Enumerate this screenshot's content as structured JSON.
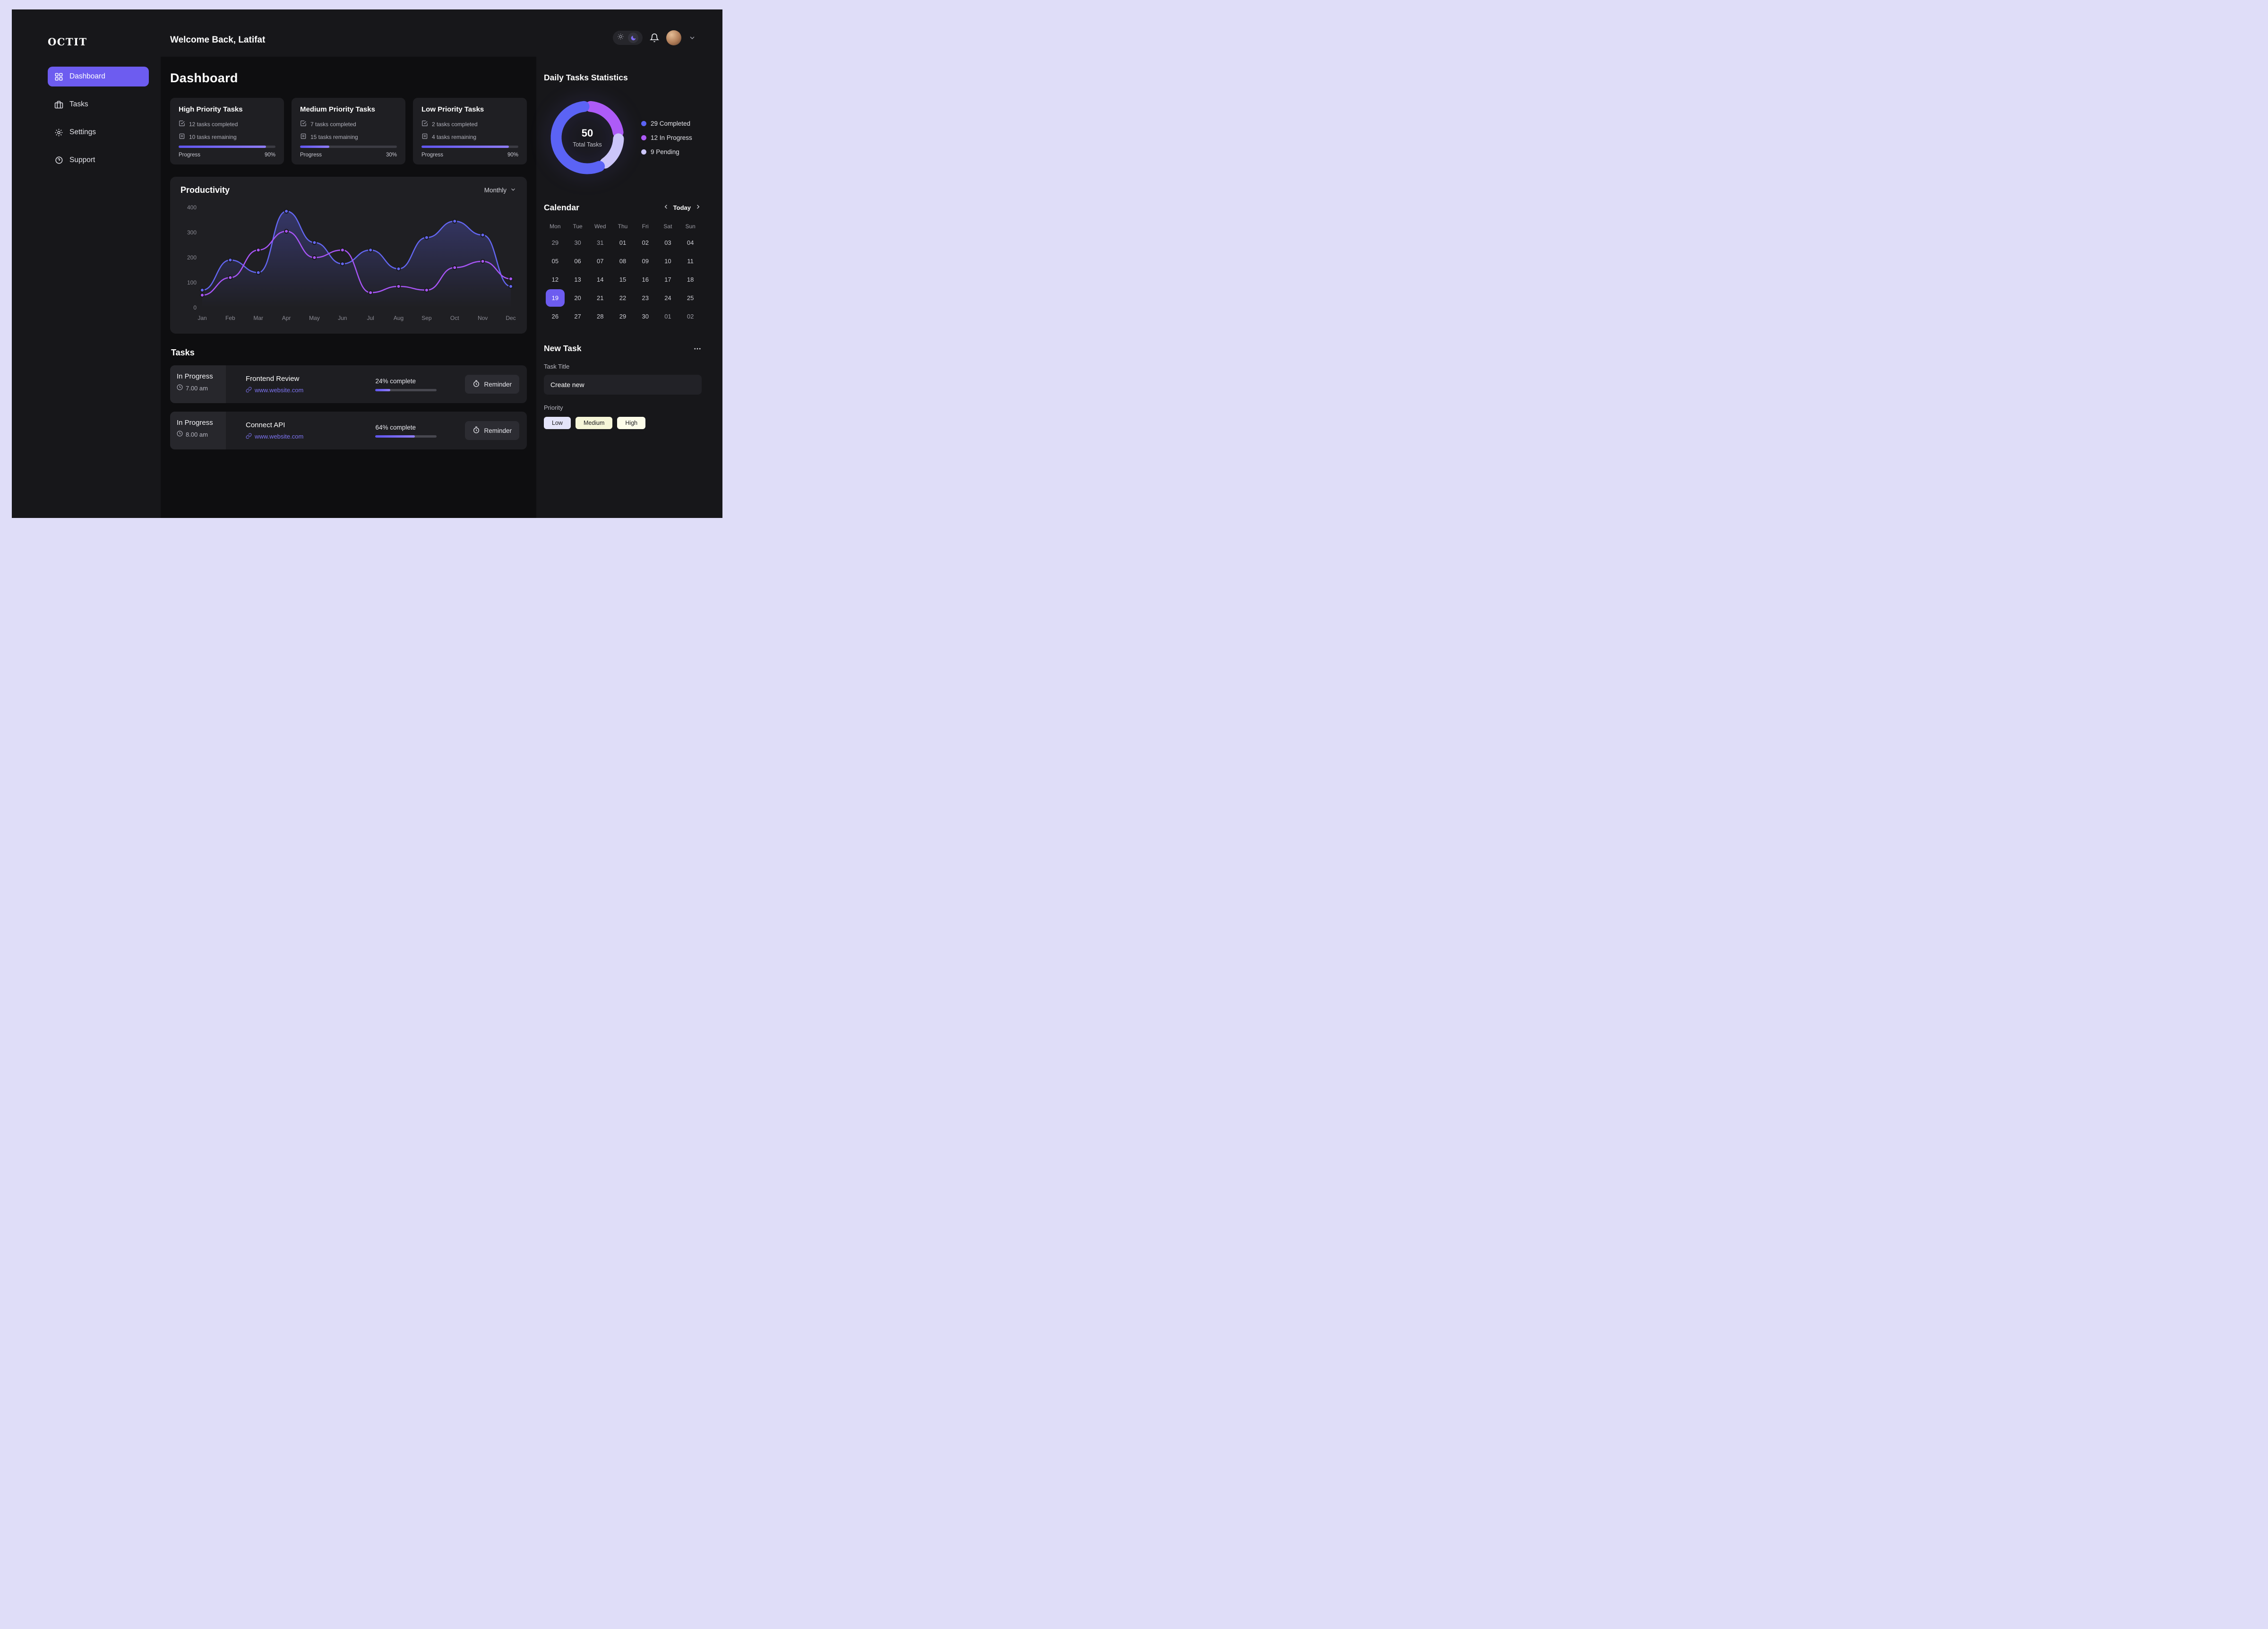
{
  "app": {
    "logo": "OCTIT",
    "welcome": "Welcome Back, Latifat"
  },
  "sidebar": {
    "items": [
      {
        "label": "Dashboard"
      },
      {
        "label": "Tasks"
      },
      {
        "label": "Settings"
      },
      {
        "label": "Support"
      }
    ]
  },
  "page": {
    "title": "Dashboard"
  },
  "priority_cards": [
    {
      "title": "High Priority Tasks",
      "completed": "12 tasks completed",
      "remaining": "10 tasks remaining",
      "progress_label": "Progress",
      "percent": 90,
      "percent_label": "90%"
    },
    {
      "title": "Medium Priority Tasks",
      "completed": "7 tasks completed",
      "remaining": "15 tasks remaining",
      "progress_label": "Progress",
      "percent": 30,
      "percent_label": "30%"
    },
    {
      "title": "Low Priority Tasks",
      "completed": "2 tasks completed",
      "remaining": "4 tasks remaining",
      "progress_label": "Progress",
      "percent": 90,
      "percent_label": "90%"
    }
  ],
  "productivity": {
    "title": "Productivity",
    "range_label": "Monthly"
  },
  "chart_data": {
    "type": "line",
    "title": "Productivity",
    "x": [
      "Jan",
      "Feb",
      "Mar",
      "Apr",
      "May",
      "Jun",
      "Jul",
      "Aug",
      "Sep",
      "Oct",
      "Nov",
      "Dec"
    ],
    "ylim": [
      0,
      400
    ],
    "yticks": [
      0,
      100,
      200,
      300,
      400
    ],
    "grid": false,
    "legend_position": "none",
    "series": [
      {
        "name": "primary",
        "color": "#6366f1",
        "area": true,
        "values": [
          70,
          190,
          140,
          385,
          260,
          175,
          230,
          155,
          280,
          345,
          290,
          85
        ]
      },
      {
        "name": "secondary",
        "color": "#a855f7",
        "area": false,
        "values": [
          50,
          120,
          230,
          305,
          200,
          230,
          60,
          85,
          70,
          160,
          185,
          115
        ]
      }
    ]
  },
  "tasks_section": {
    "title": "Tasks",
    "rows": [
      {
        "status": "In Progress",
        "time": "7.00 am",
        "title": "Frontend Review",
        "link": "www.website.com",
        "complete_label": "24% complete",
        "percent": 24,
        "reminder": "Reminder"
      },
      {
        "status": "In Progress",
        "time": "8.00 am",
        "title": "Connect API",
        "link": "www.website.com",
        "complete_label": "64% complete",
        "percent": 64,
        "reminder": "Reminder"
      }
    ]
  },
  "stats": {
    "title": "Daily Tasks Statistics",
    "total": "50",
    "total_label": "Total Tasks",
    "legend": [
      {
        "label": "29 Completed",
        "value": 29,
        "color": "#5b63f5"
      },
      {
        "label": "12 In Progress",
        "value": 12,
        "color": "#ad5bf7"
      },
      {
        "label": "9 Pending",
        "value": 9,
        "color": "#cbc5f9"
      }
    ]
  },
  "calendar": {
    "title": "Calendar",
    "today_label": "Today",
    "day_headers": [
      "Mon",
      "Tue",
      "Wed",
      "Thu",
      "Fri",
      "Sat",
      "Sun"
    ],
    "weeks": [
      [
        "29",
        "30",
        "31",
        "01",
        "02",
        "03",
        "04"
      ],
      [
        "05",
        "06",
        "07",
        "08",
        "09",
        "10",
        "11"
      ],
      [
        "12",
        "13",
        "14",
        "15",
        "16",
        "17",
        "18"
      ],
      [
        "19",
        "20",
        "21",
        "22",
        "23",
        "24",
        "25"
      ],
      [
        "26",
        "27",
        "28",
        "29",
        "30",
        "01",
        "02"
      ]
    ],
    "muted_cells": [
      [
        0,
        0
      ],
      [
        0,
        1
      ],
      [
        0,
        2
      ],
      [
        4,
        5
      ],
      [
        4,
        6
      ]
    ],
    "active_cell": [
      3,
      0
    ],
    "active_day": "19"
  },
  "new_task": {
    "title": "New Task",
    "task_title_label": "Task Title",
    "input_value": "Create new",
    "priority_label": "Priority",
    "chips": [
      {
        "label": "Low",
        "bg": "#e4e4fa"
      },
      {
        "label": "Medium",
        "bg": "#f6f6d8"
      },
      {
        "label": "High",
        "bg": "#fcfce9"
      }
    ]
  }
}
